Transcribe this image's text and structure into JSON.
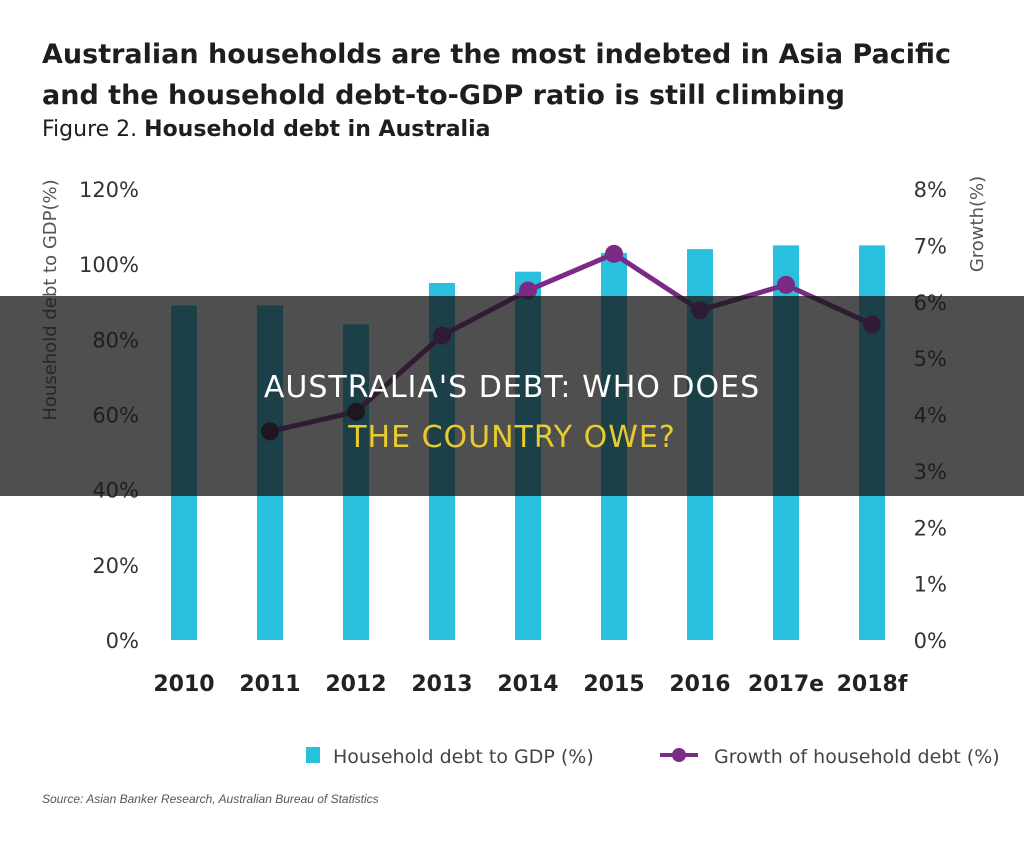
{
  "headline": "Australian households are the most indebted in Asia Pacific and the household debt-to-GDP ratio is still climbing",
  "figure_label": "Figure 2.",
  "source": "Source: Asian Banker Research, Australian Bureau of Statistics",
  "overlay": {
    "line1": "AUSTRALIA'S DEBT: WHO DOES",
    "line2": "THE COUNTRY OWE?",
    "line2_color": "#e8cc2f"
  },
  "chart_data": {
    "type": "bar",
    "title": "Household debt in Australia",
    "categories": [
      "2010",
      "2011",
      "2012",
      "2013",
      "2014",
      "2015",
      "2016",
      "2017e",
      "2018f"
    ],
    "ylabel": "Household debt to GDP(%)",
    "ylabel_right": "Growth(%)",
    "ylim": [
      0,
      120
    ],
    "yticks": [
      "0%",
      "20%",
      "40%",
      "60%",
      "80%",
      "100%",
      "120%"
    ],
    "ylim_right": [
      0,
      8
    ],
    "yticks_right": [
      "0%",
      "1%",
      "2%",
      "3%",
      "4%",
      "5%",
      "6%",
      "7%",
      "8%"
    ],
    "grid": false,
    "legend_position": "bottom",
    "series": [
      {
        "name": "Household debt to GDP (%)",
        "type": "bar",
        "axis": "left",
        "color": "#29c0dd",
        "values": [
          89,
          89,
          84,
          95,
          98,
          103,
          104,
          105,
          105
        ]
      },
      {
        "name": "Growth of household debt (%)",
        "type": "line",
        "axis": "right",
        "color": "#7b2a86",
        "values": [
          null,
          3.7,
          4.05,
          5.4,
          6.2,
          6.85,
          5.85,
          6.3,
          5.6
        ]
      }
    ]
  }
}
